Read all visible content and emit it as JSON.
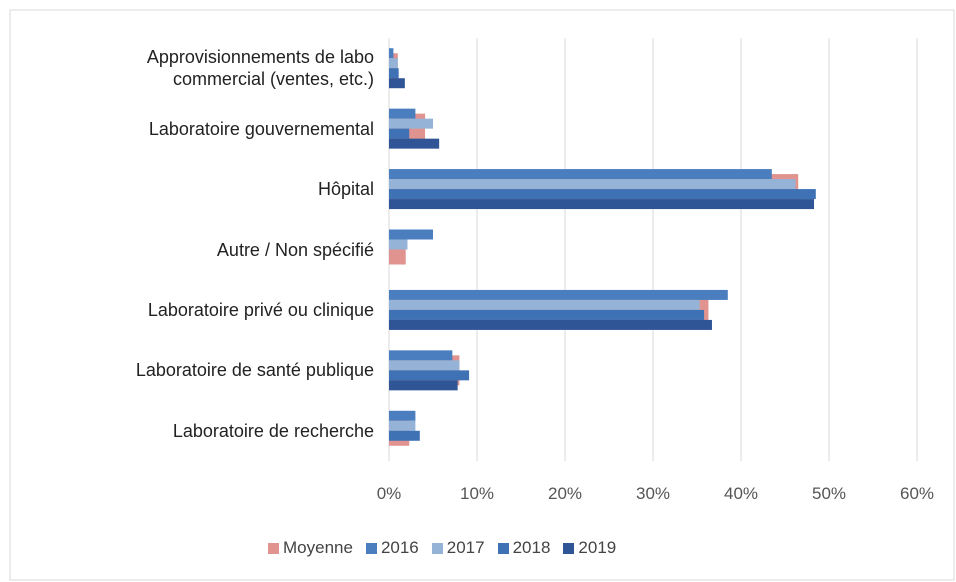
{
  "chart_data": {
    "type": "hbar",
    "categories": [
      "Approvisionnements de labo commercial (ventes, etc.)",
      "Laboratoire gouvernemental",
      "Hôpital",
      "Autre / Non spécifié",
      "Laboratoire privé ou clinique",
      "Laboratoire de santé publique",
      "Laboratoire de recherche"
    ],
    "series": [
      {
        "name": "Moyenne",
        "color": "#e0938f",
        "values": [
          1.0,
          4.1,
          46.5,
          1.9,
          36.3,
          8.0,
          2.3
        ]
      },
      {
        "name": "2016",
        "color": "#4a7ebf",
        "values": [
          0.5,
          3.0,
          43.5,
          5.0,
          38.5,
          7.2,
          3.0
        ]
      },
      {
        "name": "2017",
        "color": "#95b3d7",
        "values": [
          1.0,
          5.0,
          46.2,
          2.1,
          35.3,
          8.0,
          3.0
        ]
      },
      {
        "name": "2018",
        "color": "#3f72b5",
        "values": [
          1.1,
          2.3,
          48.5,
          0,
          35.8,
          9.1,
          3.5
        ]
      },
      {
        "name": "2019",
        "color": "#2f5597",
        "values": [
          1.8,
          5.7,
          48.3,
          0,
          36.7,
          7.8,
          0
        ]
      }
    ],
    "xlim": [
      0,
      60
    ],
    "xticks": [
      {
        "value": 0,
        "label": "0%"
      },
      {
        "value": 10,
        "label": "10%"
      },
      {
        "value": 20,
        "label": "20%"
      },
      {
        "value": 30,
        "label": "30%"
      },
      {
        "value": 40,
        "label": "40%"
      },
      {
        "value": 50,
        "label": "50%"
      },
      {
        "value": 60,
        "label": "60%"
      }
    ],
    "grid": true
  }
}
